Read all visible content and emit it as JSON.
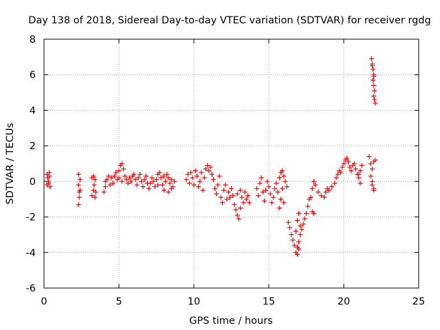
{
  "chart_data": {
    "type": "scatter",
    "title": "Day 138 of 2018, Sidereal Day-to-day VTEC variation (SDTVAR) for receiver rgdg",
    "xlabel": "GPS time / hours",
    "ylabel": "SDTVAR / TECUs",
    "xlim": [
      0,
      25
    ],
    "ylim": [
      -6,
      8
    ],
    "xticks": [
      0,
      5,
      10,
      15,
      20,
      25
    ],
    "xtick_labels": [
      "0",
      "5",
      "10",
      "15",
      "20",
      "25"
    ],
    "yticks": [
      -6,
      -4,
      -2,
      0,
      2,
      4,
      6,
      8
    ],
    "ytick_labels": [
      "-6",
      "-4",
      "-2",
      "0",
      "2",
      "4",
      "6",
      "8"
    ],
    "grid": true,
    "marker": "+",
    "color": "#ff0000",
    "series": [
      {
        "name": "SDTVAR",
        "points": [
          [
            0.2,
            0.4
          ],
          [
            0.25,
            0.2
          ],
          [
            0.3,
            -0.1
          ],
          [
            0.35,
            0.5
          ],
          [
            0.4,
            -0.3
          ],
          [
            0.3,
            0.0
          ],
          [
            0.2,
            -0.2
          ],
          [
            0.35,
            0.3
          ],
          [
            2.3,
            -1.3
          ],
          [
            2.35,
            -0.9
          ],
          [
            2.4,
            -0.5
          ],
          [
            2.3,
            -0.2
          ],
          [
            2.4,
            0.1
          ],
          [
            2.3,
            0.4
          ],
          [
            2.35,
            -0.6
          ],
          [
            3.2,
            -0.8
          ],
          [
            3.3,
            -0.5
          ],
          [
            3.35,
            -0.2
          ],
          [
            3.4,
            0.1
          ],
          [
            3.3,
            0.3
          ],
          [
            3.45,
            -0.6
          ],
          [
            3.2,
            0.2
          ],
          [
            3.4,
            -0.9
          ],
          [
            4.0,
            -0.6
          ],
          [
            4.1,
            -0.3
          ],
          [
            4.2,
            0.1
          ],
          [
            4.3,
            0.3
          ],
          [
            4.1,
            0.0
          ],
          [
            4.4,
            -0.2
          ],
          [
            4.5,
            0.2
          ],
          [
            4.6,
            -0.1
          ],
          [
            4.7,
            0.3
          ],
          [
            4.8,
            0.5
          ],
          [
            4.9,
            0.1
          ],
          [
            5.0,
            0.6
          ],
          [
            5.1,
            0.9
          ],
          [
            5.2,
            1.0
          ],
          [
            5.3,
            0.7
          ],
          [
            5.0,
            0.2
          ],
          [
            5.2,
            0.0
          ],
          [
            5.4,
            0.3
          ],
          [
            5.5,
            0.1
          ],
          [
            5.6,
            -0.1
          ],
          [
            5.7,
            0.2
          ],
          [
            5.8,
            0.0
          ],
          [
            5.9,
            0.3
          ],
          [
            6.0,
            0.4
          ],
          [
            6.1,
            0.1
          ],
          [
            6.2,
            -0.2
          ],
          [
            6.3,
            0.2
          ],
          [
            6.4,
            0.4
          ],
          [
            6.5,
            0.0
          ],
          [
            6.6,
            -0.3
          ],
          [
            6.7,
            0.1
          ],
          [
            6.8,
            0.3
          ],
          [
            6.9,
            -0.1
          ],
          [
            7.0,
            -0.4
          ],
          [
            7.1,
            -0.1
          ],
          [
            7.2,
            0.2
          ],
          [
            7.3,
            0.0
          ],
          [
            7.4,
            -0.3
          ],
          [
            7.5,
            0.1
          ],
          [
            7.6,
            0.4
          ],
          [
            7.7,
            0.5
          ],
          [
            7.8,
            0.2
          ],
          [
            7.9,
            -0.2
          ],
          [
            8.0,
            -0.5
          ],
          [
            8.1,
            0.0
          ],
          [
            8.2,
            0.4
          ],
          [
            8.3,
            0.2
          ],
          [
            8.4,
            -0.1
          ],
          [
            8.5,
            0.1
          ],
          [
            8.6,
            -0.3
          ],
          [
            8.7,
            0.0
          ],
          [
            8.5,
            -0.4
          ],
          [
            8.3,
            -0.6
          ],
          [
            8.0,
            0.3
          ],
          [
            7.6,
            -0.2
          ],
          [
            9.5,
            0.1
          ],
          [
            9.6,
            0.4
          ],
          [
            9.7,
            -0.1
          ],
          [
            9.8,
            0.5
          ],
          [
            9.9,
            0.2
          ],
          [
            10.0,
            -0.2
          ],
          [
            10.1,
            0.6
          ],
          [
            10.2,
            0.3
          ],
          [
            10.3,
            -0.3
          ],
          [
            10.4,
            0.0
          ],
          [
            10.5,
            0.5
          ],
          [
            10.6,
            -0.5
          ],
          [
            10.7,
            0.2
          ],
          [
            10.8,
            0.7
          ],
          [
            10.9,
            0.9
          ],
          [
            11.0,
            0.6
          ],
          [
            11.1,
            0.8
          ],
          [
            11.2,
            0.4
          ],
          [
            11.3,
            0.1
          ],
          [
            11.4,
            -0.4
          ],
          [
            11.5,
            -0.7
          ],
          [
            11.6,
            -0.2
          ],
          [
            11.7,
            0.3
          ],
          [
            11.8,
            -0.9
          ],
          [
            11.9,
            -1.2
          ],
          [
            12.0,
            -0.5
          ],
          [
            12.1,
            -0.2
          ],
          [
            12.2,
            -1.0
          ],
          [
            12.3,
            -0.6
          ],
          [
            12.4,
            -0.9
          ],
          [
            12.5,
            -0.4
          ],
          [
            12.6,
            -0.8
          ],
          [
            12.7,
            -1.3
          ],
          [
            12.8,
            -1.6
          ],
          [
            12.9,
            -1.9
          ],
          [
            13.0,
            -2.1
          ],
          [
            13.1,
            -1.5
          ],
          [
            13.2,
            -0.9
          ],
          [
            13.3,
            -1.2
          ],
          [
            13.4,
            -0.6
          ],
          [
            13.5,
            -1.0
          ],
          [
            13.6,
            -0.8
          ],
          [
            13.7,
            -1.2
          ],
          [
            13.1,
            -0.5
          ],
          [
            12.9,
            -0.7
          ],
          [
            14.2,
            -0.4
          ],
          [
            14.3,
            -0.8
          ],
          [
            14.4,
            -0.1
          ],
          [
            14.5,
            0.2
          ],
          [
            14.6,
            -0.6
          ],
          [
            14.7,
            -1.1
          ],
          [
            14.8,
            -0.5
          ],
          [
            14.9,
            0.0
          ],
          [
            15.0,
            -0.3
          ],
          [
            15.1,
            -0.7
          ],
          [
            15.2,
            -1.2
          ],
          [
            15.3,
            -0.9
          ],
          [
            15.4,
            -0.4
          ],
          [
            15.5,
            -0.1
          ],
          [
            15.6,
            -0.6
          ],
          [
            15.7,
            0.2
          ],
          [
            15.8,
            0.5
          ],
          [
            15.9,
            0.6
          ],
          [
            16.0,
            0.3
          ],
          [
            16.1,
            0.0
          ],
          [
            15.9,
            -0.4
          ],
          [
            15.8,
            -1.0
          ],
          [
            15.7,
            -1.5
          ],
          [
            16.0,
            -1.2
          ],
          [
            16.2,
            -0.3
          ],
          [
            16.3,
            -2.3
          ],
          [
            16.4,
            -2.6
          ],
          [
            16.5,
            -3.0
          ],
          [
            16.6,
            -3.3
          ],
          [
            16.7,
            -3.6
          ],
          [
            16.8,
            -4.0
          ],
          [
            16.9,
            -3.7
          ],
          [
            17.0,
            -3.4
          ],
          [
            17.1,
            -3.0
          ],
          [
            17.2,
            -2.7
          ],
          [
            17.3,
            -2.4
          ],
          [
            17.4,
            -2.1
          ],
          [
            17.5,
            -1.8
          ],
          [
            17.6,
            -1.4
          ],
          [
            17.7,
            -1.0
          ],
          [
            16.8,
            -2.8
          ],
          [
            16.9,
            -2.2
          ],
          [
            17.0,
            -1.8
          ],
          [
            17.1,
            -2.5
          ],
          [
            17.0,
            -3.8
          ],
          [
            16.9,
            -4.1
          ],
          [
            17.9,
            -1.7
          ],
          [
            18.0,
            -1.8
          ],
          [
            17.8,
            -0.9
          ],
          [
            17.9,
            -0.4
          ],
          [
            18.0,
            0.0
          ],
          [
            18.1,
            -0.2
          ],
          [
            18.3,
            -0.6
          ],
          [
            18.5,
            -0.8
          ],
          [
            18.7,
            -0.9
          ],
          [
            18.8,
            -0.6
          ],
          [
            18.9,
            -0.4
          ],
          [
            19.0,
            -0.5
          ],
          [
            19.2,
            -0.3
          ],
          [
            19.4,
            -0.1
          ],
          [
            19.5,
            0.2
          ],
          [
            19.6,
            0.4
          ],
          [
            19.7,
            0.6
          ],
          [
            19.8,
            0.5
          ],
          [
            19.9,
            0.8
          ],
          [
            20.0,
            1.0
          ],
          [
            20.1,
            1.2
          ],
          [
            20.2,
            1.3
          ],
          [
            20.3,
            1.1
          ],
          [
            20.4,
            0.8
          ],
          [
            20.5,
            0.6
          ],
          [
            20.6,
            0.9
          ],
          [
            20.7,
            1.0
          ],
          [
            20.8,
            0.7
          ],
          [
            20.9,
            0.4
          ],
          [
            21.0,
            0.2
          ],
          [
            21.1,
            0.6
          ],
          [
            21.2,
            0.9
          ],
          [
            21.1,
            -0.1
          ],
          [
            21.0,
            0.4
          ],
          [
            21.7,
            1.4
          ],
          [
            21.8,
            1.0
          ],
          [
            21.9,
            0.7
          ],
          [
            22.0,
            1.1
          ],
          [
            22.1,
            1.2
          ],
          [
            21.8,
            0.3
          ],
          [
            21.9,
            -0.2
          ],
          [
            22.0,
            -0.4
          ],
          [
            22.0,
            -0.5
          ],
          [
            21.9,
            0.0
          ],
          [
            21.85,
            6.9
          ],
          [
            21.9,
            6.6
          ],
          [
            21.95,
            6.3
          ],
          [
            22.0,
            6.0
          ],
          [
            21.95,
            5.7
          ],
          [
            22.0,
            5.4
          ],
          [
            22.05,
            5.1
          ],
          [
            22.0,
            4.8
          ],
          [
            22.05,
            4.6
          ],
          [
            22.1,
            4.4
          ],
          [
            21.9,
            6.5
          ],
          [
            22.0,
            5.9
          ]
        ]
      }
    ]
  }
}
